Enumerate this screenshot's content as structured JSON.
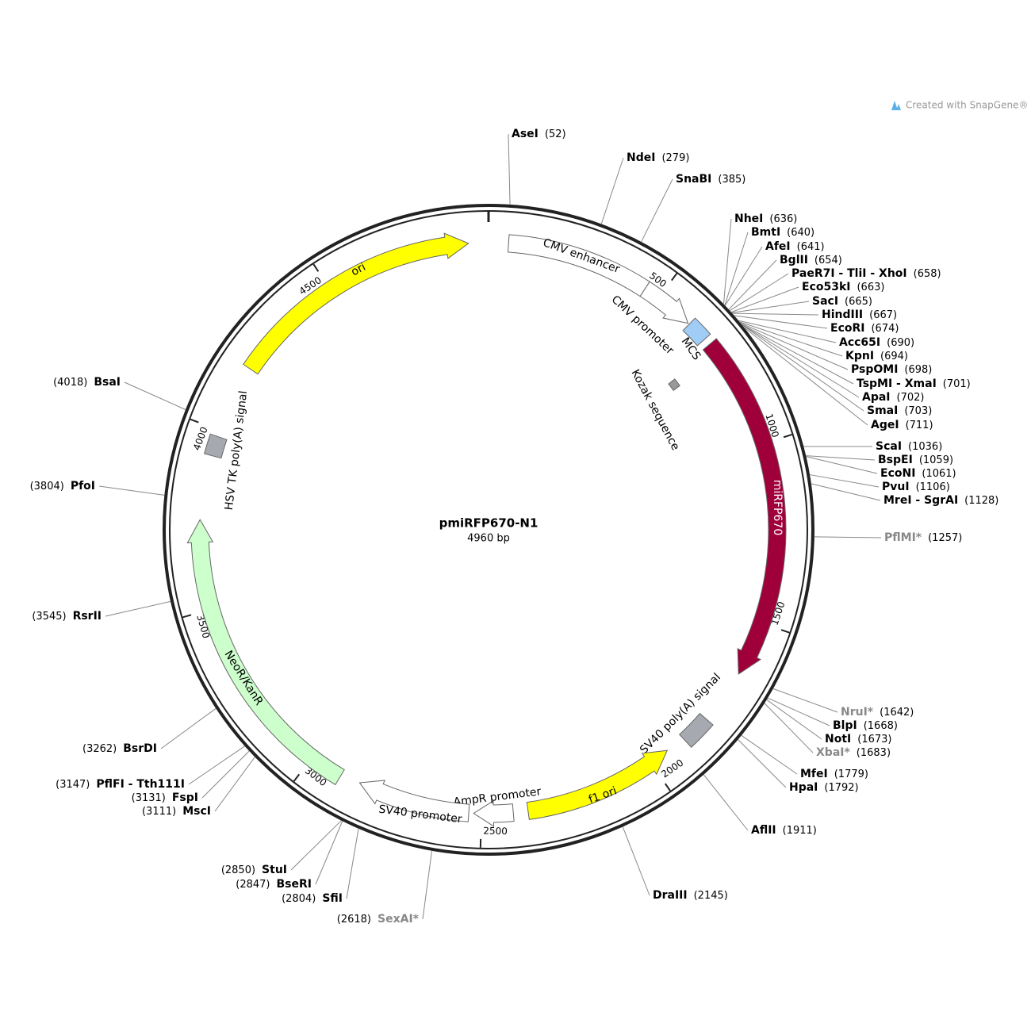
{
  "title": "pmiRFP670-N1",
  "length": {
    "value": 4960,
    "label": "4960 bp"
  },
  "credit": "Created with SnapGene®",
  "ticks": [
    500,
    1000,
    1500,
    2000,
    2500,
    3000,
    3500,
    4000,
    4500
  ],
  "features": [
    {
      "name": "ori"
    },
    {
      "name": "CMV enhancer"
    },
    {
      "name": "CMV promoter"
    },
    {
      "name": "MCS"
    },
    {
      "name": "Kozak sequence"
    },
    {
      "name": "miRFP670"
    },
    {
      "name": "SV40 poly(A) signal"
    },
    {
      "name": "f1 ori"
    },
    {
      "name": "AmpR promoter"
    },
    {
      "name": "SV40 promoter"
    },
    {
      "name": "NeoR/KanR"
    },
    {
      "name": "HSV TK poly(A) signal"
    }
  ],
  "sites": [
    {
      "name": "AseI",
      "position": {
        "value": 52,
        "label": "(52)"
      },
      "color": "#000000"
    },
    {
      "name": "NdeI",
      "position": {
        "value": 279,
        "label": "(279)"
      },
      "color": "#000000"
    },
    {
      "name": "SnaBI",
      "position": {
        "value": 385,
        "label": "(385)"
      },
      "color": "#000000"
    },
    {
      "name": "NheI",
      "position": {
        "value": 636,
        "label": "(636)"
      },
      "color": "#000000"
    },
    {
      "name": "BmtI",
      "position": {
        "value": 640,
        "label": "(640)"
      },
      "color": "#000000"
    },
    {
      "name": "AfeI",
      "position": {
        "value": 641,
        "label": "(641)"
      },
      "color": "#000000"
    },
    {
      "name": "BglII",
      "position": {
        "value": 654,
        "label": "(654)"
      },
      "color": "#000000"
    },
    {
      "name": "PaeR7I - TliI - XhoI",
      "position": {
        "value": 658,
        "label": "(658)"
      },
      "color": "#000000"
    },
    {
      "name": "Eco53kI",
      "position": {
        "value": 663,
        "label": "(663)"
      },
      "color": "#000000"
    },
    {
      "name": "SacI",
      "position": {
        "value": 665,
        "label": "(665)"
      },
      "color": "#000000"
    },
    {
      "name": "HindIII",
      "position": {
        "value": 667,
        "label": "(667)"
      },
      "color": "#000000"
    },
    {
      "name": "EcoRI",
      "position": {
        "value": 674,
        "label": "(674)"
      },
      "color": "#000000"
    },
    {
      "name": "Acc65I",
      "position": {
        "value": 690,
        "label": "(690)"
      },
      "color": "#000000"
    },
    {
      "name": "KpnI",
      "position": {
        "value": 694,
        "label": "(694)"
      },
      "color": "#000000"
    },
    {
      "name": "PspOMI",
      "position": {
        "value": 698,
        "label": "(698)"
      },
      "color": "#000000"
    },
    {
      "name": "TspMI - XmaI",
      "position": {
        "value": 701,
        "label": "(701)"
      },
      "color": "#000000"
    },
    {
      "name": "ApaI",
      "position": {
        "value": 702,
        "label": "(702)"
      },
      "color": "#000000"
    },
    {
      "name": "SmaI",
      "position": {
        "value": 703,
        "label": "(703)"
      },
      "color": "#000000"
    },
    {
      "name": "AgeI",
      "position": {
        "value": 711,
        "label": "(711)"
      },
      "color": "#000000"
    },
    {
      "name": "ScaI",
      "position": {
        "value": 1036,
        "label": "(1036)"
      },
      "color": "#000000"
    },
    {
      "name": "BspEI",
      "position": {
        "value": 1059,
        "label": "(1059)"
      },
      "color": "#000000"
    },
    {
      "name": "EcoNI",
      "position": {
        "value": 1061,
        "label": "(1061)"
      },
      "color": "#000000"
    },
    {
      "name": "PvuI",
      "position": {
        "value": 1106,
        "label": "(1106)"
      },
      "color": "#000000"
    },
    {
      "name": "MreI - SgrAI",
      "position": {
        "value": 1128,
        "label": "(1128)"
      },
      "color": "#000000"
    },
    {
      "name": "PflMI*",
      "position": {
        "value": 1257,
        "label": "(1257)"
      },
      "color": "#888888"
    },
    {
      "name": "NruI*",
      "position": {
        "value": 1642,
        "label": "(1642)"
      },
      "color": "#888888"
    },
    {
      "name": "BlpI",
      "position": {
        "value": 1668,
        "label": "(1668)"
      },
      "color": "#000000"
    },
    {
      "name": "NotI",
      "position": {
        "value": 1673,
        "label": "(1673)"
      },
      "color": "#000000"
    },
    {
      "name": "XbaI*",
      "position": {
        "value": 1683,
        "label": "(1683)"
      },
      "color": "#888888"
    },
    {
      "name": "MfeI",
      "position": {
        "value": 1779,
        "label": "(1779)"
      },
      "color": "#000000"
    },
    {
      "name": "HpaI",
      "position": {
        "value": 1792,
        "label": "(1792)"
      },
      "color": "#000000"
    },
    {
      "name": "AflII",
      "position": {
        "value": 1911,
        "label": "(1911)"
      },
      "color": "#000000"
    },
    {
      "name": "DraIII",
      "position": {
        "value": 2145,
        "label": "(2145)"
      },
      "color": "#000000"
    },
    {
      "name": "SexAI*",
      "position": {
        "value": 2618,
        "label": "(2618)"
      },
      "color": "#888888"
    },
    {
      "name": "SfiI",
      "position": {
        "value": 2804,
        "label": "(2804)"
      },
      "color": "#000000"
    },
    {
      "name": "BseRI",
      "position": {
        "value": 2847,
        "label": "(2847)"
      },
      "color": "#000000"
    },
    {
      "name": "StuI",
      "position": {
        "value": 2850,
        "label": "(2850)"
      },
      "color": "#000000"
    },
    {
      "name": "MscI",
      "position": {
        "value": 3111,
        "label": "(3111)"
      },
      "color": "#000000"
    },
    {
      "name": "FspI",
      "position": {
        "value": 3131,
        "label": "(3131)"
      },
      "color": "#000000"
    },
    {
      "name": "PflFI - Tth111I",
      "position": {
        "value": 3147,
        "label": "(3147)"
      },
      "color": "#000000"
    },
    {
      "name": "BsrDI",
      "position": {
        "value": 3262,
        "label": "(3262)"
      },
      "color": "#000000"
    },
    {
      "name": "RsrII",
      "position": {
        "value": 3545,
        "label": "(3545)"
      },
      "color": "#000000"
    },
    {
      "name": "PfoI",
      "position": {
        "value": 3804,
        "label": "(3804)"
      },
      "color": "#000000"
    },
    {
      "name": "BsaI",
      "position": {
        "value": 4018,
        "label": "(4018)"
      },
      "color": "#000000"
    }
  ]
}
